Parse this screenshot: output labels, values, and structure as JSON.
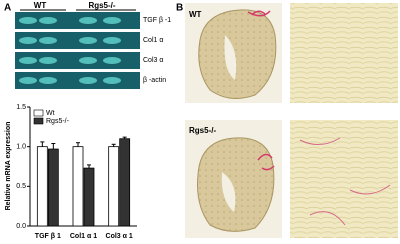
{
  "panel_a": {
    "label": "A",
    "gel": {
      "groups": [
        "WT",
        "Rgs5-/-"
      ],
      "lanes": [
        "TGF β -1",
        "Col1 α",
        "Col3 α",
        "β -actin"
      ]
    }
  },
  "chart_data": {
    "type": "bar",
    "ylabel": "Relative mRNA expression",
    "categories": [
      "TGF β 1",
      "Col1 α 1",
      "Col3 α 1"
    ],
    "series": [
      {
        "name": "Wt",
        "color": "#ffffff",
        "values": [
          1.0,
          1.0,
          1.0
        ],
        "errors": [
          0.06,
          0.05,
          0.03
        ]
      },
      {
        "name": "Rgs5-/-",
        "color": "#333333",
        "values": [
          0.97,
          0.73,
          1.1
        ],
        "errors": [
          0.07,
          0.04,
          0.02
        ]
      }
    ],
    "ylim": [
      0,
      1.5
    ],
    "yticks": [
      {
        "value": 0,
        "label": "0.0"
      },
      {
        "value": 0.5,
        "label": "0.5"
      },
      {
        "value": 1,
        "label": "1.0"
      },
      {
        "value": 1.5,
        "label": "1.5"
      }
    ]
  },
  "panel_b": {
    "label": "B",
    "rows": [
      "WT",
      "Rgs5-/-"
    ]
  }
}
